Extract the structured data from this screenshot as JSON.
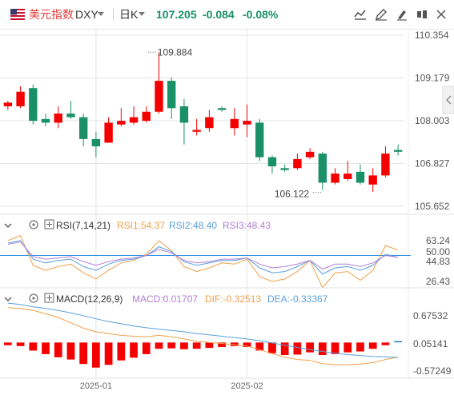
{
  "header": {
    "symbol_name": "美元指数",
    "symbol_code": "DXY",
    "period": "日K",
    "last_price": "107.205",
    "change": "-0.084",
    "change_pct": "-0.08%",
    "icons": [
      "indicator-icon",
      "draw-icon",
      "brush-icon",
      "compare-icon",
      "fullscreen-icon"
    ]
  },
  "colors": {
    "up": "#f50000",
    "down": "#1a9068",
    "price_blue": "#1e78c8",
    "grid": "#e5e5e5",
    "rsi1": "#f0a04a",
    "rsi2": "#5aa0dc",
    "rsi3": "#b27fd6",
    "dif": "#f0a04a",
    "dea": "#5aa0dc",
    "level_line": "#2f8fe0"
  },
  "chart_data": [
    {
      "type": "candlestick",
      "title": "DXY",
      "y_ticks": [
        "110.354",
        "109.179",
        "108.003",
        "106.827",
        "105.652"
      ],
      "ylim": [
        105.652,
        110.354
      ],
      "x_labels": [
        {
          "label": "2025-01",
          "index": 7
        },
        {
          "label": "2025-02",
          "index": 19
        }
      ],
      "annotations": [
        {
          "text": "109.884",
          "index": 11,
          "value": 109.884
        },
        {
          "text": "106.122",
          "index": 25,
          "value": 106.122
        }
      ],
      "candles": [
        [
          108.4,
          108.55,
          108.3,
          108.5
        ],
        [
          108.4,
          108.95,
          108.35,
          108.8
        ],
        [
          108.9,
          109.0,
          107.9,
          108.0
        ],
        [
          108.05,
          108.2,
          107.85,
          107.95
        ],
        [
          107.95,
          108.4,
          107.8,
          108.2
        ],
        [
          108.2,
          108.55,
          108.05,
          108.1
        ],
        [
          108.1,
          108.2,
          107.3,
          107.5
        ],
        [
          107.5,
          107.7,
          107.0,
          107.3
        ],
        [
          107.4,
          108.1,
          107.4,
          107.95
        ],
        [
          107.9,
          108.35,
          107.85,
          108.0
        ],
        [
          107.95,
          108.4,
          107.9,
          108.1
        ],
        [
          108.0,
          108.4,
          107.95,
          108.25
        ],
        [
          108.25,
          109.88,
          108.2,
          109.1
        ],
        [
          109.1,
          109.2,
          108.05,
          108.35
        ],
        [
          108.4,
          108.6,
          107.35,
          107.95
        ],
        [
          107.7,
          108.05,
          107.6,
          107.75
        ],
        [
          107.8,
          108.3,
          107.7,
          108.1
        ],
        [
          108.35,
          108.4,
          108.25,
          108.3
        ],
        [
          107.8,
          108.35,
          107.6,
          108.05
        ],
        [
          107.9,
          108.45,
          107.55,
          108.0
        ],
        [
          107.95,
          108.05,
          106.9,
          107.0
        ],
        [
          107.0,
          107.05,
          106.55,
          106.75
        ],
        [
          106.7,
          106.8,
          106.6,
          106.65
        ],
        [
          106.7,
          107.1,
          106.65,
          106.95
        ],
        [
          107.0,
          107.25,
          106.95,
          107.15
        ],
        [
          107.1,
          107.15,
          106.1,
          106.3
        ],
        [
          106.3,
          106.7,
          106.25,
          106.55
        ],
        [
          106.4,
          106.9,
          106.35,
          106.55
        ],
        [
          106.6,
          106.8,
          106.25,
          106.3
        ],
        [
          106.25,
          106.7,
          106.05,
          106.5
        ],
        [
          106.5,
          107.3,
          106.45,
          107.1
        ],
        [
          107.2,
          107.35,
          107.05,
          107.15
        ]
      ]
    },
    {
      "type": "line",
      "title": "RSI(7,14,21)",
      "y_ticks": [
        "63.24",
        "50.00",
        "44.83",
        "26.43"
      ],
      "ylim": [
        26.43,
        69.0
      ],
      "reference_line": 50.0,
      "series": [
        {
          "name": "RSI1",
          "legend": "RSI1:54.37",
          "values": [
            62,
            66,
            42,
            38,
            41,
            43,
            36,
            31,
            38,
            44,
            46,
            51,
            62,
            54,
            41,
            37,
            40,
            44,
            43,
            47,
            33,
            29,
            31,
            37,
            46,
            24,
            36,
            37,
            30,
            38,
            58,
            54.37
          ]
        },
        {
          "name": "RSI2",
          "legend": "RSI2:48.40",
          "values": [
            60,
            62,
            47,
            44,
            46,
            47,
            41,
            38,
            43,
            46,
            47,
            50,
            57,
            53,
            45,
            42,
            44,
            46,
            46,
            48,
            40,
            36,
            37,
            41,
            46,
            35,
            40,
            41,
            38,
            42,
            51,
            48.4
          ]
        },
        {
          "name": "RSI3",
          "legend": "RSI3:48.43",
          "values": [
            59,
            61,
            49,
            47,
            48,
            49,
            45,
            42,
            45,
            47,
            48,
            50,
            55,
            52,
            46,
            44,
            45,
            47,
            47,
            48,
            43,
            40,
            41,
            43,
            46,
            39,
            43,
            43,
            41,
            44,
            50,
            48.43
          ]
        }
      ]
    },
    {
      "type": "bar+line",
      "title": "MACD(12,26,9)",
      "y_ticks": [
        "0.67532",
        "0.05141",
        "-0.57249"
      ],
      "ylim": [
        -0.78,
        0.9
      ],
      "series": [
        {
          "name": "MACD",
          "legend": "MACD:0.01707",
          "values": [
            -0.06,
            -0.08,
            -0.18,
            -0.26,
            -0.33,
            -0.38,
            -0.48,
            -0.56,
            -0.5,
            -0.4,
            -0.34,
            -0.26,
            -0.14,
            -0.13,
            -0.15,
            -0.14,
            -0.12,
            -0.1,
            -0.08,
            -0.1,
            -0.18,
            -0.24,
            -0.28,
            -0.27,
            -0.22,
            -0.28,
            -0.26,
            -0.22,
            -0.2,
            -0.14,
            -0.06,
            0.01707
          ]
        },
        {
          "name": "DIF",
          "legend": "DIF:-0.32513",
          "values": [
            0.78,
            0.76,
            0.72,
            0.64,
            0.56,
            0.44,
            0.32,
            0.24,
            0.2,
            0.16,
            0.14,
            0.13,
            0.16,
            0.13,
            0.08,
            0.03,
            0.0,
            -0.02,
            -0.05,
            -0.08,
            -0.16,
            -0.25,
            -0.33,
            -0.38,
            -0.4,
            -0.47,
            -0.5,
            -0.5,
            -0.48,
            -0.45,
            -0.38,
            -0.32513
          ]
        },
        {
          "name": "DEA",
          "legend": "DEA:-0.33367",
          "values": [
            0.88,
            0.85,
            0.8,
            0.76,
            0.72,
            0.66,
            0.6,
            0.53,
            0.47,
            0.42,
            0.37,
            0.33,
            0.3,
            0.27,
            0.24,
            0.2,
            0.17,
            0.14,
            0.11,
            0.08,
            0.04,
            -0.01,
            -0.06,
            -0.11,
            -0.16,
            -0.2,
            -0.24,
            -0.27,
            -0.29,
            -0.31,
            -0.32,
            -0.33367
          ]
        }
      ]
    }
  ]
}
